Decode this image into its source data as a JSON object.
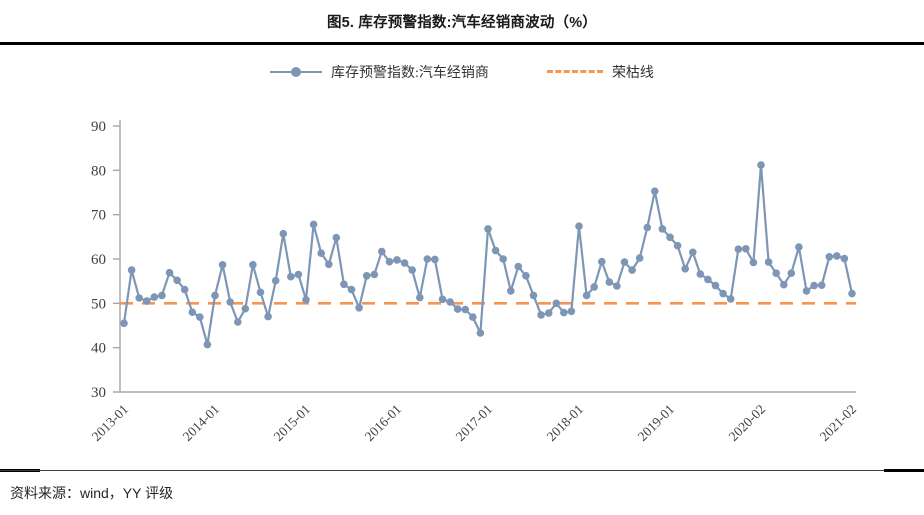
{
  "title": "图5. 库存预警指数:汽车经销商波动（%）",
  "legend": {
    "series_label": "库存预警指数:汽车经销商",
    "threshold_label": "荣枯线"
  },
  "source_note": "资料来源：wind，YY 评级",
  "colors": {
    "series": "#7e96b6",
    "threshold": "#f7944d",
    "axis": "#a6a6a6",
    "tick_text": "#404040",
    "rule": "#000000"
  },
  "chart_data": {
    "type": "line",
    "title": "图5. 库存预警指数:汽车经销商波动（%）",
    "xlabel": "",
    "ylabel": "",
    "ylim": [
      30,
      90
    ],
    "ytick_step": 10,
    "yticks": [
      30,
      40,
      50,
      60,
      70,
      80,
      90
    ],
    "xtick_every": 12,
    "grid": false,
    "legend_position": "top",
    "x": [
      "2013-01",
      "2013-02",
      "2013-03",
      "2013-04",
      "2013-05",
      "2013-06",
      "2013-07",
      "2013-08",
      "2013-09",
      "2013-10",
      "2013-11",
      "2013-12",
      "2014-01",
      "2014-02",
      "2014-03",
      "2014-04",
      "2014-05",
      "2014-06",
      "2014-07",
      "2014-08",
      "2014-09",
      "2014-10",
      "2014-11",
      "2014-12",
      "2015-01",
      "2015-02",
      "2015-03",
      "2015-04",
      "2015-05",
      "2015-06",
      "2015-07",
      "2015-08",
      "2015-09",
      "2015-10",
      "2015-11",
      "2015-12",
      "2016-01",
      "2016-02",
      "2016-03",
      "2016-04",
      "2016-05",
      "2016-06",
      "2016-07",
      "2016-08",
      "2016-09",
      "2016-10",
      "2016-11",
      "2016-12",
      "2017-01",
      "2017-02",
      "2017-03",
      "2017-04",
      "2017-05",
      "2017-06",
      "2017-07",
      "2017-08",
      "2017-09",
      "2017-10",
      "2017-11",
      "2017-12",
      "2018-01",
      "2018-02",
      "2018-03",
      "2018-04",
      "2018-05",
      "2018-06",
      "2018-07",
      "2018-08",
      "2018-09",
      "2018-10",
      "2018-11",
      "2018-12",
      "2019-01",
      "2019-02",
      "2019-03",
      "2019-04",
      "2019-05",
      "2019-06",
      "2019-07",
      "2019-08",
      "2019-09",
      "2019-10",
      "2019-11",
      "2019-12",
      "2020-02",
      "2020-03",
      "2020-04",
      "2020-05",
      "2020-06",
      "2020-07",
      "2020-08",
      "2020-09",
      "2020-10",
      "2020-11",
      "2020-12",
      "2021-01",
      "2021-02"
    ],
    "series": [
      {
        "name": "库存预警指数:汽车经销商",
        "color": "#7e96b6",
        "style": "solid-marker",
        "values": [
          45.5,
          57.5,
          51.2,
          50.5,
          51.4,
          51.8,
          56.9,
          55.2,
          53.1,
          48.0,
          46.9,
          40.7,
          51.8,
          58.7,
          50.3,
          45.8,
          48.8,
          58.7,
          52.5,
          47.0,
          55.1,
          65.7,
          56.0,
          56.5,
          50.8,
          67.8,
          61.3,
          58.8,
          64.8,
          54.3,
          53.1,
          49.0,
          56.2,
          56.5,
          61.7,
          59.4,
          59.8,
          59.1,
          57.5,
          51.3,
          60.0,
          59.9,
          50.9,
          50.3,
          48.7,
          48.6,
          46.9,
          43.3,
          66.8,
          61.9,
          60.0,
          52.8,
          58.3,
          56.2,
          51.8,
          47.4,
          47.8,
          50.0,
          47.9,
          48.2,
          67.4,
          51.8,
          53.7,
          59.4,
          54.8,
          53.9,
          59.3,
          57.5,
          60.2,
          67.1,
          75.3,
          66.8,
          64.9,
          63.0,
          57.8,
          61.5,
          56.6,
          55.4,
          54.0,
          52.2,
          51.0,
          62.2,
          62.3,
          59.2,
          81.2,
          59.3,
          56.8,
          54.2,
          56.8,
          62.7,
          52.8,
          54.0,
          54.1,
          60.5,
          60.7,
          60.1,
          52.2
        ]
      },
      {
        "name": "荣枯线",
        "color": "#f7944d",
        "style": "dashed",
        "constant": 50
      }
    ]
  }
}
